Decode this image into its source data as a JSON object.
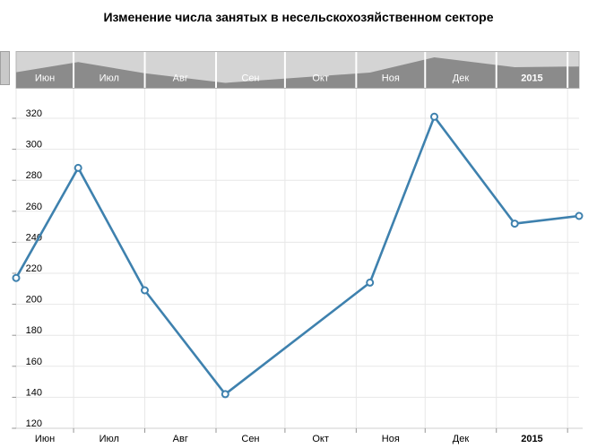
{
  "title": "Изменение числа занятых в несельскохозяйственном секторе",
  "navigator": {
    "month_labels": [
      "Июн",
      "Июл",
      "Авг",
      "Сен",
      "Окт",
      "Ноя",
      "Дек",
      "2015"
    ],
    "bold_labels": [
      "2015"
    ]
  },
  "chart_data": {
    "type": "line",
    "title": "Изменение числа занятых в несельскохозяйственном секторе",
    "x_axis": {
      "type": "date",
      "start": "2014-06-06",
      "end": "2015-02-06",
      "month_labels": [
        "Июн",
        "Июл",
        "Авг",
        "Сен",
        "Окт",
        "Ноя",
        "Дек",
        "2015"
      ],
      "bold_labels": [
        "2015"
      ]
    },
    "y_axis": {
      "ticks": [
        120,
        140,
        160,
        180,
        200,
        220,
        240,
        260,
        280,
        300,
        320
      ],
      "min": 120,
      "max": 320
    },
    "series": [
      {
        "points": [
          {
            "date": "2014-06-06",
            "value": 217
          },
          {
            "date": "2014-07-03",
            "value": 288
          },
          {
            "date": "2014-08-01",
            "value": 209
          },
          {
            "date": "2014-09-05",
            "value": 142
          },
          {
            "date": "2014-11-07",
            "value": 214
          },
          {
            "date": "2014-12-05",
            "value": 321
          },
          {
            "date": "2015-01-09",
            "value": 252
          },
          {
            "date": "2015-02-06",
            "value": 257
          }
        ]
      }
    ],
    "grid": true,
    "legend": false
  },
  "colors": {
    "line": "#3e81ae",
    "marker_fill": "#ffffff",
    "grid": "#e7e7e7",
    "axis": "#cfcfcf",
    "tick": "#969696",
    "label": "#000000",
    "nav_bg": "#d4d4d4",
    "nav_area": "#8b8b8b",
    "nav_border": "#b4b4b4",
    "nav_separator": "#ffffff",
    "nav_label": "#ffffff",
    "handle_fill": "#c9c9c9",
    "handle_border": "#a0a0a0"
  }
}
